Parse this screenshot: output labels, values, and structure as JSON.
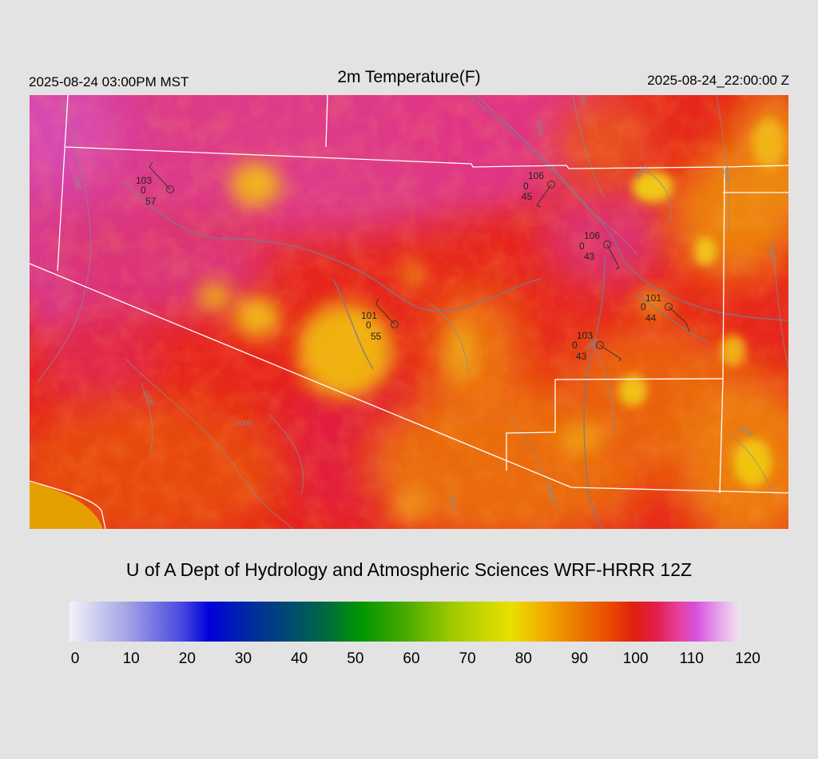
{
  "header": {
    "local_time": "2025-08-24 03:00PM MST",
    "title": "2m Temperature(F)",
    "utc_time": "2025-08-24_22:00:00 Z"
  },
  "credit": "U of A Dept of Hydrology and Atmospheric Sciences WRF-HRRR 12Z",
  "colorbar": {
    "min": 0,
    "max": 120,
    "tick_labels": [
      "0",
      "10",
      "20",
      "30",
      "40",
      "50",
      "60",
      "70",
      "80",
      "90",
      "100",
      "110",
      "120"
    ],
    "stops": [
      {
        "value": 0,
        "color": "#f2f2f8"
      },
      {
        "value": 10,
        "color": "#a6a6e6"
      },
      {
        "value": 20,
        "color": "#4a4ae0"
      },
      {
        "value": 25,
        "color": "#0000dc"
      },
      {
        "value": 32,
        "color": "#002aa0"
      },
      {
        "value": 40,
        "color": "#004e6c"
      },
      {
        "value": 46,
        "color": "#006a40"
      },
      {
        "value": 52,
        "color": "#009600"
      },
      {
        "value": 60,
        "color": "#48aa00"
      },
      {
        "value": 68,
        "color": "#9cc800"
      },
      {
        "value": 74,
        "color": "#c8d600"
      },
      {
        "value": 79,
        "color": "#e8e000"
      },
      {
        "value": 84,
        "color": "#f0b400"
      },
      {
        "value": 90,
        "color": "#ec8000"
      },
      {
        "value": 96,
        "color": "#ea5000"
      },
      {
        "value": 101,
        "color": "#e01e10"
      },
      {
        "value": 105,
        "color": "#e0204a"
      },
      {
        "value": 109,
        "color": "#e640a0"
      },
      {
        "value": 112,
        "color": "#d850e0"
      },
      {
        "value": 116,
        "color": "#e6a0e8"
      },
      {
        "value": 120,
        "color": "#f0e6f0"
      }
    ]
  },
  "stations": [
    {
      "temp": "103",
      "precip": "0",
      "dewpoint": "57"
    },
    {
      "temp": "106",
      "precip": "0",
      "dewpoint": "45"
    },
    {
      "temp": "106",
      "precip": "0",
      "dewpoint": "43"
    },
    {
      "temp": "101",
      "precip": "0",
      "dewpoint": "55"
    },
    {
      "temp": "101",
      "precip": "0",
      "dewpoint": "44"
    },
    {
      "temp": "103",
      "precip": "0",
      "dewpoint": "43"
    }
  ],
  "contour_labels": [
    "1000",
    "2000",
    "3000",
    "1000",
    "2000",
    "3000",
    "2000",
    "3000",
    "3000",
    "3000",
    "3000",
    "3000"
  ]
}
